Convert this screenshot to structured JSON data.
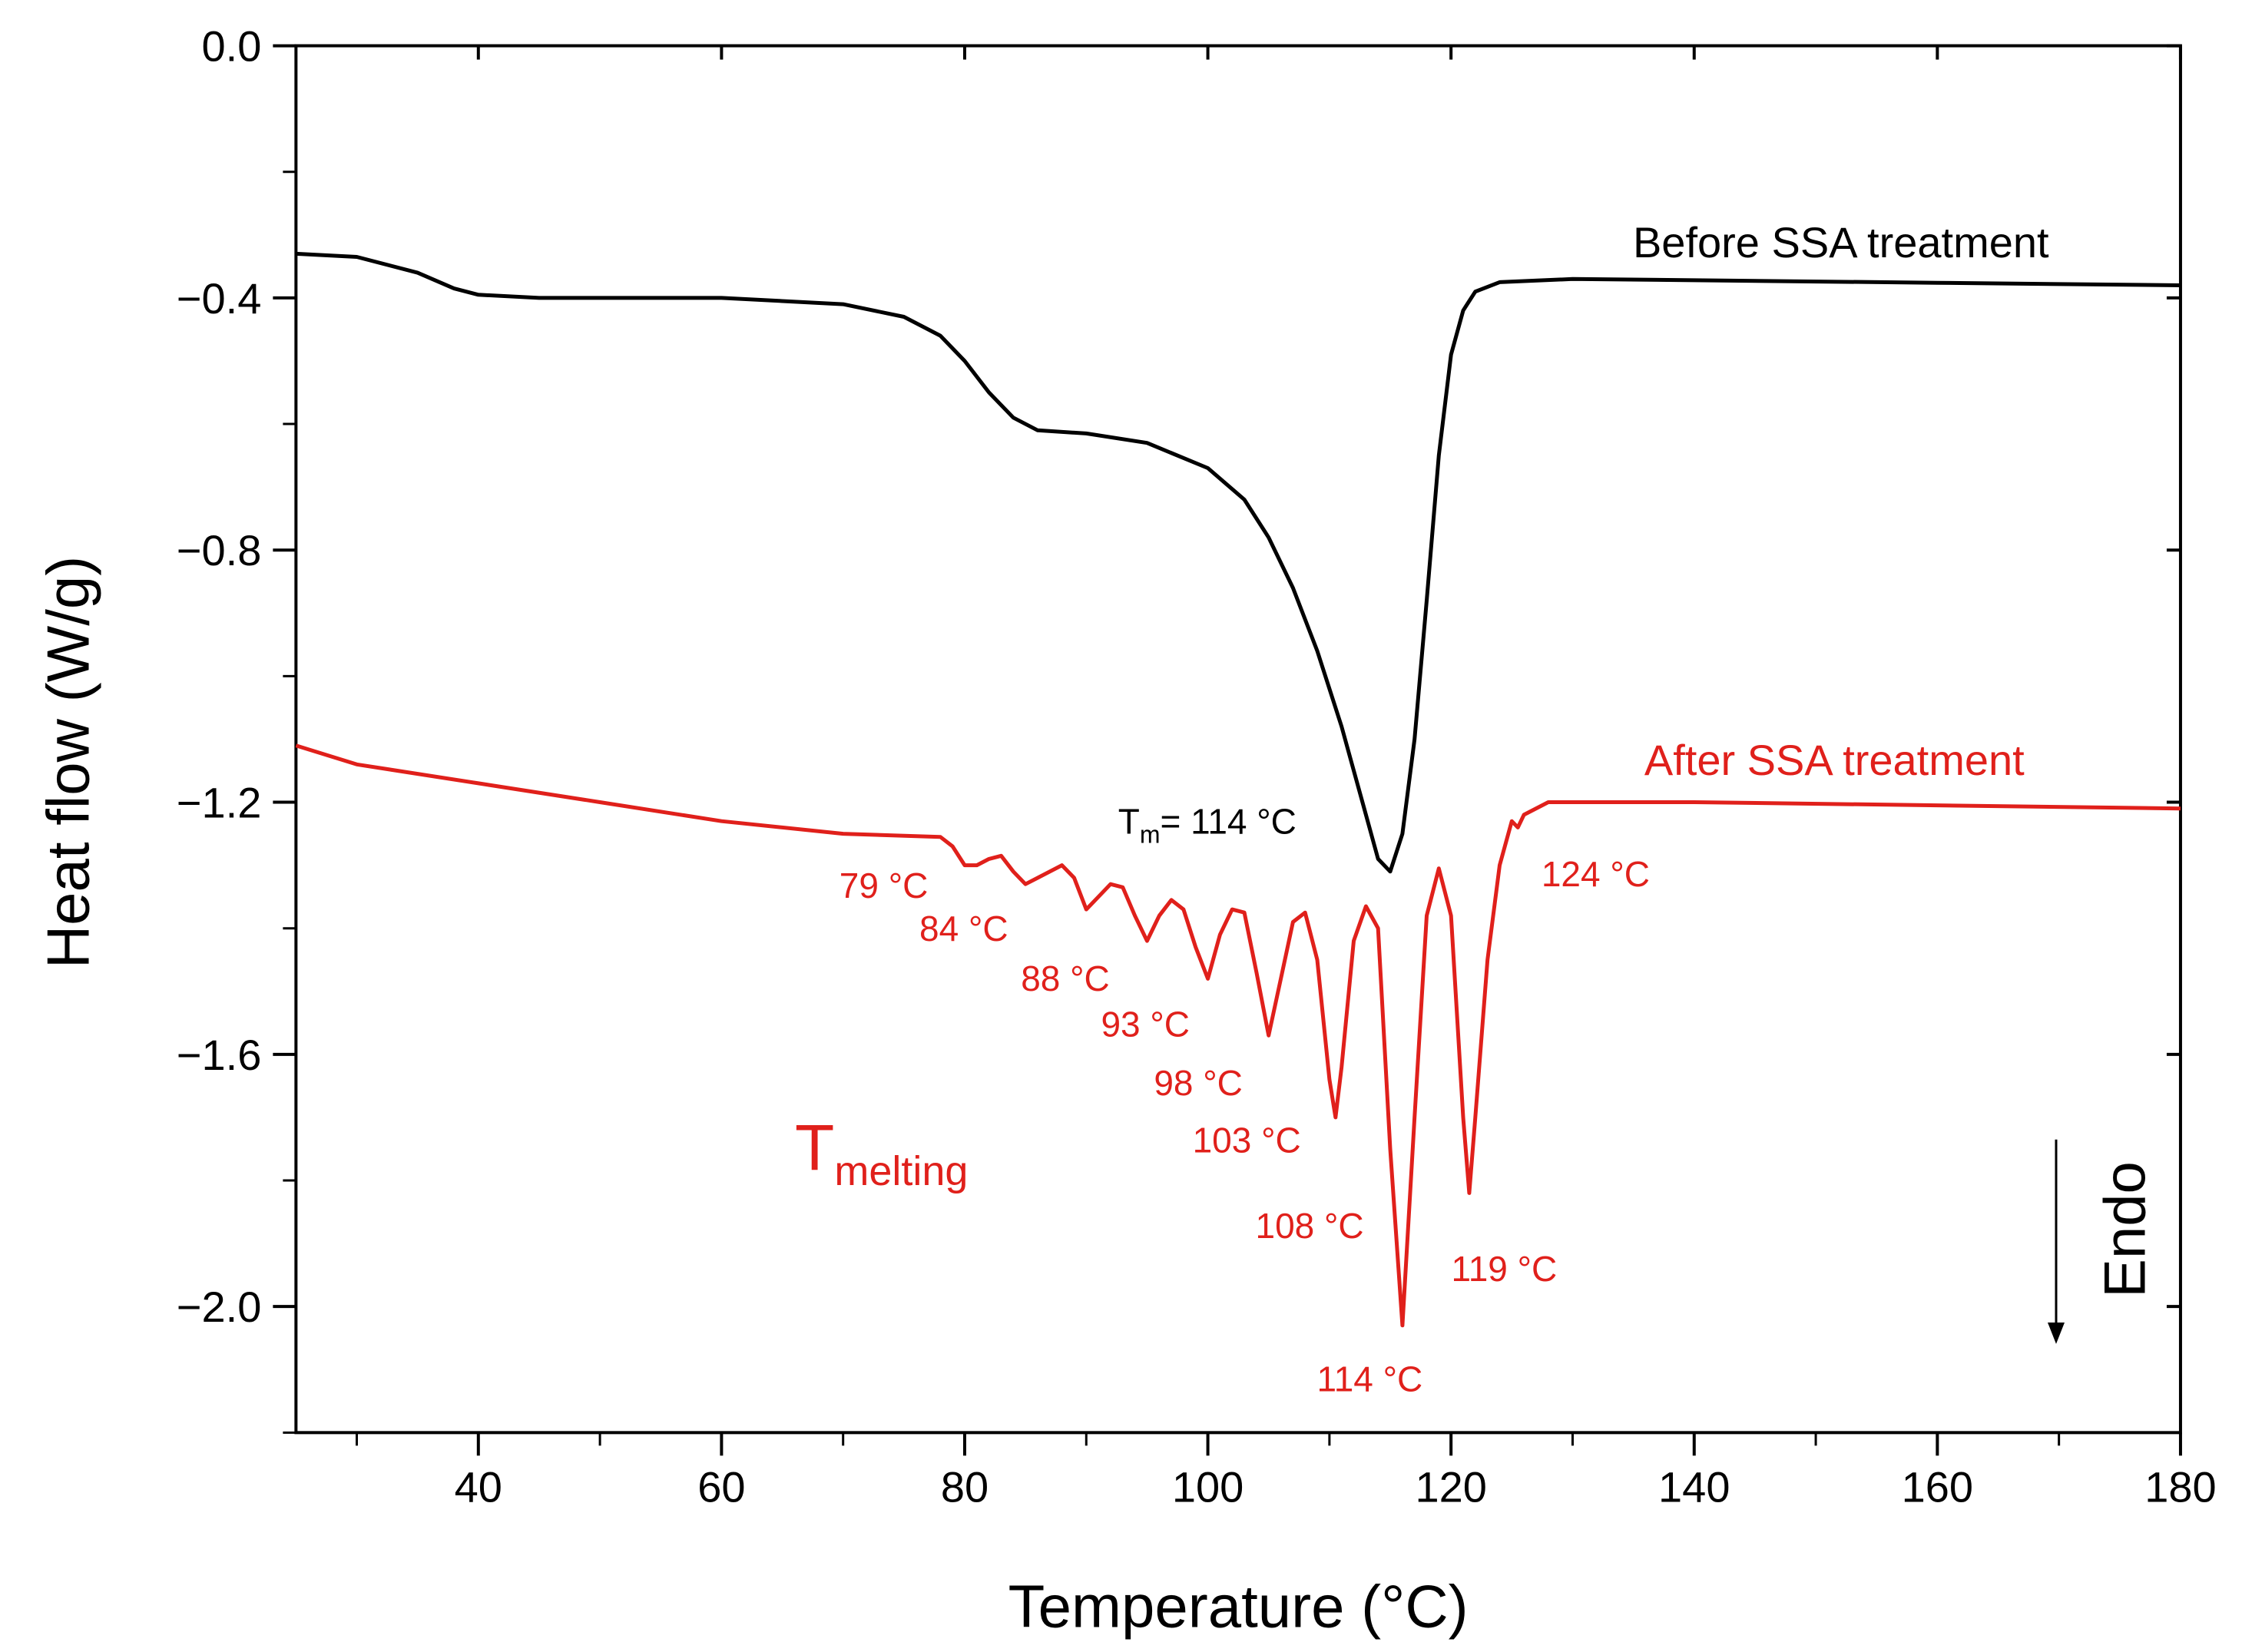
{
  "chart_data": {
    "type": "line",
    "x_label": "Temperature (°C)",
    "y_label": "Heat flow (W/g)",
    "xlim": [
      25,
      180
    ],
    "ylim": [
      -2.2,
      0
    ],
    "xticks": [
      40,
      60,
      80,
      100,
      120,
      140,
      160,
      180
    ],
    "yticks": [
      {
        "value": 0,
        "label": "0.0"
      },
      {
        "value": -0.4,
        "label": "−0.4"
      },
      {
        "value": -0.8,
        "label": "−0.8"
      },
      {
        "value": -1.2,
        "label": "−1.2"
      },
      {
        "value": -1.6,
        "label": "−1.6"
      },
      {
        "value": -2.0,
        "label": "−2.0"
      }
    ],
    "series": [
      {
        "name": "Before SSA treatment",
        "color": "#000000",
        "x": [
          25,
          30,
          35,
          38,
          40,
          45,
          50,
          60,
          70,
          75,
          78,
          80,
          82,
          84,
          86,
          90,
          95,
          100,
          103,
          105,
          107,
          109,
          111,
          113,
          114,
          115,
          116,
          117,
          118,
          119,
          120,
          121,
          122,
          124,
          130,
          140,
          160,
          180
        ],
        "values": [
          -0.33,
          -0.335,
          -0.36,
          -0.385,
          -0.395,
          -0.4,
          -0.4,
          -0.4,
          -0.41,
          -0.43,
          -0.46,
          -0.5,
          -0.55,
          -0.59,
          -0.61,
          -0.615,
          -0.63,
          -0.67,
          -0.72,
          -0.78,
          -0.86,
          -0.96,
          -1.08,
          -1.22,
          -1.29,
          -1.31,
          -1.25,
          -1.1,
          -0.88,
          -0.65,
          -0.49,
          -0.42,
          -0.39,
          -0.375,
          -0.37,
          -0.372,
          -0.376,
          -0.38
        ]
      },
      {
        "name": "After SSA treatment",
        "color": "#e0201b",
        "x": [
          25,
          30,
          40,
          50,
          60,
          70,
          78,
          79,
          80,
          81,
          82,
          83,
          84,
          85,
          86,
          88,
          89,
          90,
          91,
          92,
          93,
          94,
          95,
          96,
          97,
          98,
          99,
          100,
          101,
          102,
          103,
          104,
          105,
          106,
          107,
          108,
          109,
          110,
          110.5,
          111,
          112,
          113,
          114,
          115,
          116,
          117,
          118,
          119,
          120,
          121,
          121.5,
          122,
          123,
          124,
          125,
          125.5,
          126,
          128,
          140,
          160,
          180
        ],
        "values": [
          -1.11,
          -1.14,
          -1.17,
          -1.2,
          -1.23,
          -1.25,
          -1.255,
          -1.27,
          -1.3,
          -1.3,
          -1.29,
          -1.285,
          -1.31,
          -1.33,
          -1.32,
          -1.3,
          -1.32,
          -1.37,
          -1.35,
          -1.33,
          -1.335,
          -1.38,
          -1.42,
          -1.38,
          -1.355,
          -1.37,
          -1.43,
          -1.48,
          -1.41,
          -1.37,
          -1.375,
          -1.47,
          -1.57,
          -1.48,
          -1.39,
          -1.375,
          -1.45,
          -1.64,
          -1.7,
          -1.62,
          -1.42,
          -1.365,
          -1.4,
          -1.75,
          -2.03,
          -1.7,
          -1.38,
          -1.305,
          -1.38,
          -1.7,
          -1.82,
          -1.7,
          -1.45,
          -1.3,
          -1.23,
          -1.24,
          -1.22,
          -1.2,
          -1.2,
          -1.205,
          -1.21
        ]
      }
    ],
    "tm_label": {
      "main": "T",
      "sub": "m",
      "rest": "= 114 °C"
    },
    "melting_label": {
      "main": "T",
      "sub": "melting"
    },
    "peak_labels": [
      "79 °C",
      "84 °C",
      "88 °C",
      "93 °C",
      "98 °C",
      "103 °C",
      "108 °C",
      "114 °C",
      "119 °C",
      "124 °C"
    ],
    "endo_label": "Endo"
  }
}
